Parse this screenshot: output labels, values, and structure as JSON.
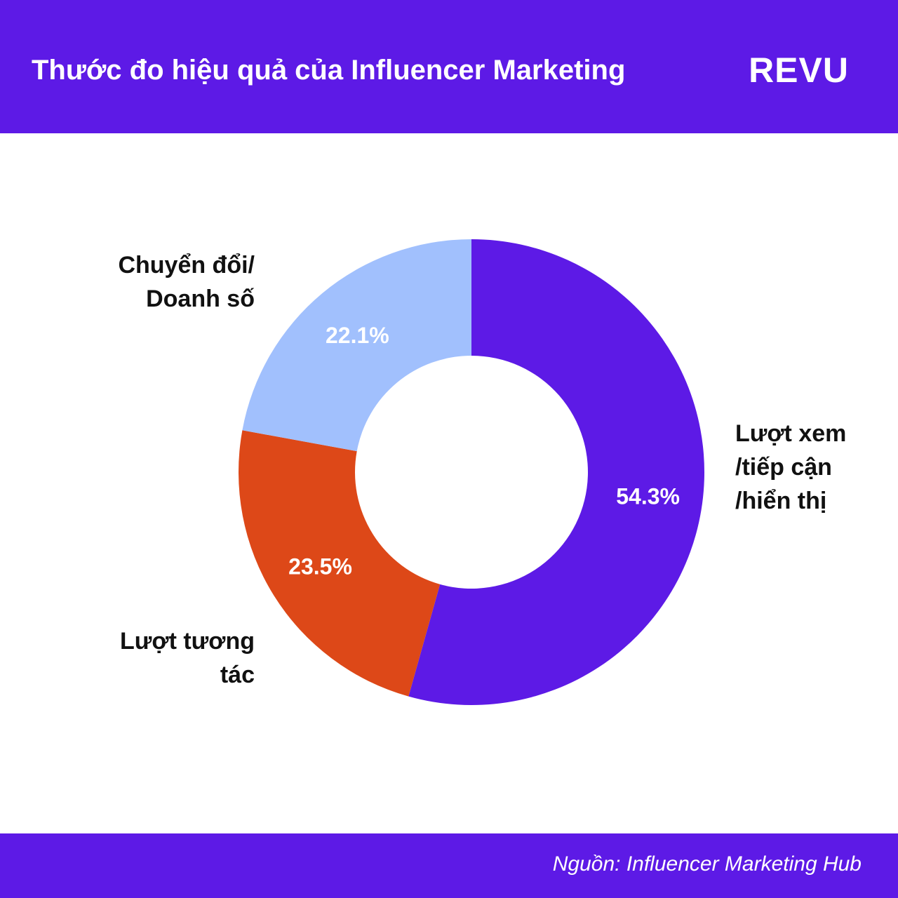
{
  "header": {
    "title": "Thước đo hiệu quả của Influencer Marketing",
    "brand": "REVU"
  },
  "colors": {
    "brand": "#5d1ae6",
    "slice_views": "#5d1ae6",
    "slice_engagement": "#dd4818",
    "slice_conversion": "#a1c0fd",
    "value_label": "#ffffff",
    "category_label": "#111111"
  },
  "chart_data": {
    "type": "pie",
    "donut": true,
    "slices": [
      {
        "label_lines": [
          "Lượt xem",
          "/tiếp cận",
          "/hiển thị"
        ],
        "value": 54.3,
        "value_label": "54.3%",
        "color": "#5d1ae6"
      },
      {
        "label_lines": [
          "Lượt tương",
          "tác"
        ],
        "value": 23.5,
        "value_label": "23.5%",
        "color": "#dd4818"
      },
      {
        "label_lines": [
          "Chuyển đổi/",
          "Doanh số"
        ],
        "value": 22.1,
        "value_label": "22.1%",
        "color": "#a1c0fd"
      }
    ]
  },
  "footer": {
    "source": "Nguồn: Influencer Marketing Hub"
  }
}
